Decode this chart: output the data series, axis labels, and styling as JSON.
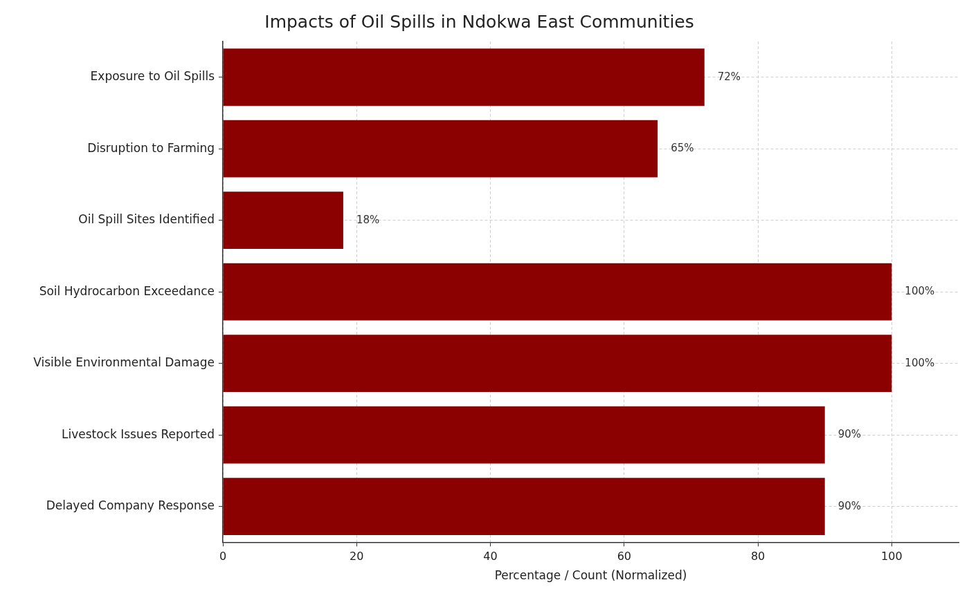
{
  "chart_data": {
    "type": "bar",
    "orientation": "horizontal",
    "title": "Impacts of Oil Spills in Ndokwa East Communities",
    "xlabel": "Percentage / Count (Normalized)",
    "categories": [
      "Exposure to Oil Spills",
      "Disruption to Farming",
      "Oil Spill Sites Identified",
      "Soil Hydrocarbon Exceedance",
      "Visible Environmental Damage",
      "Livestock Issues Reported",
      "Delayed Company Response"
    ],
    "values": [
      72,
      65,
      18,
      100,
      100,
      90,
      90
    ],
    "value_labels": [
      "72%",
      "65%",
      "18%",
      "100%",
      "100%",
      "90%",
      "90%"
    ],
    "color": "#8b0000",
    "xlim": [
      0,
      110
    ],
    "xticks": [
      0,
      20,
      40,
      60,
      80,
      100
    ],
    "grid": true
  }
}
